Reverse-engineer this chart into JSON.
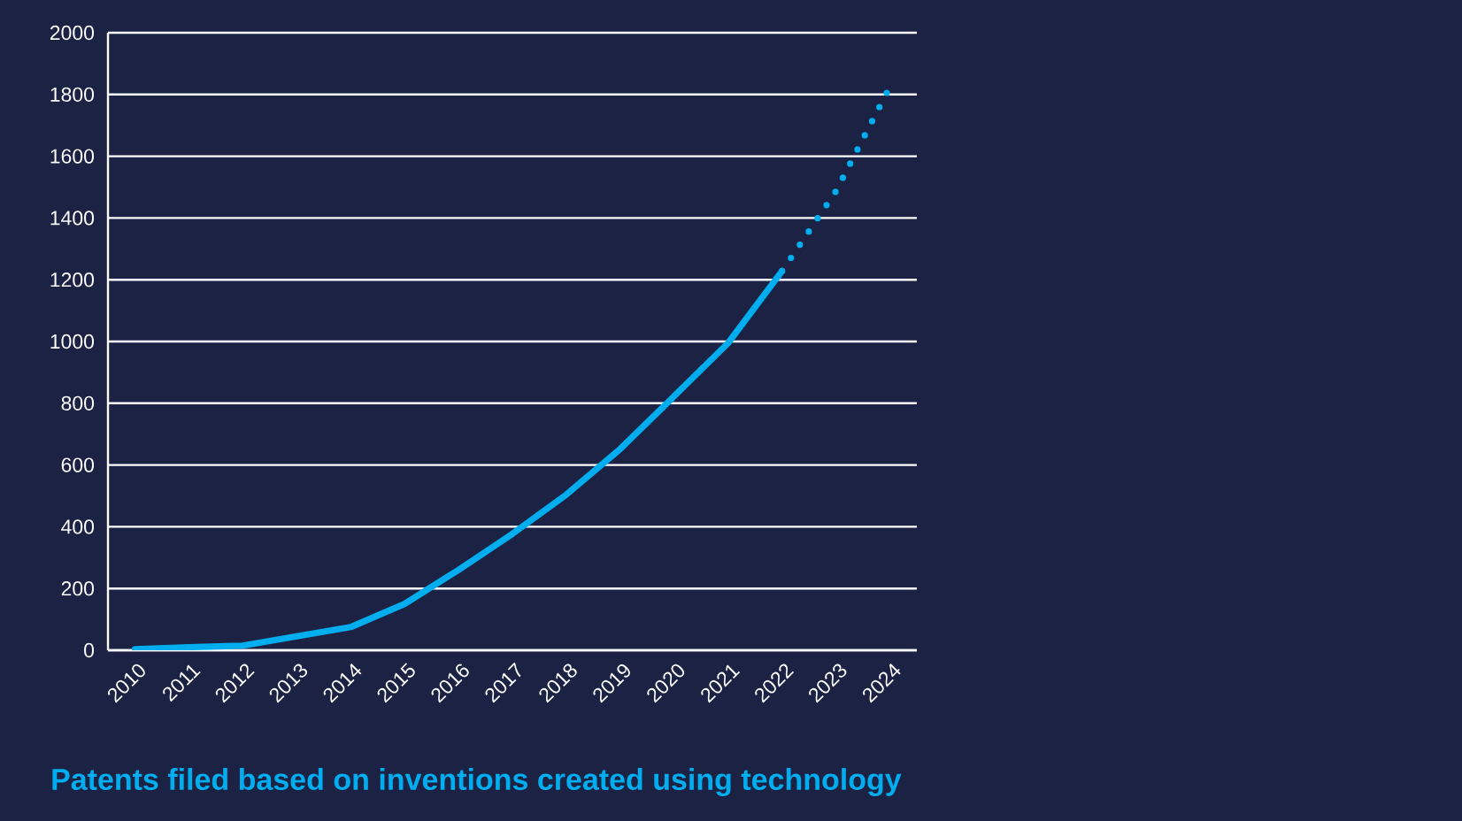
{
  "chart_data": {
    "type": "line",
    "title": "Patents filed based on inventions created using technology",
    "categories": [
      "2010",
      "2011",
      "2012",
      "2013",
      "2014",
      "2015",
      "2016",
      "2017",
      "2018",
      "2019",
      "2020",
      "2021",
      "2022",
      "2023",
      "2024"
    ],
    "series": [
      {
        "color": "#00aeef",
        "line_style": "solid",
        "values": [
          3,
          10,
          15,
          45,
          75,
          150,
          260,
          377,
          504,
          652,
          823,
          995,
          1228,
          null,
          null
        ]
      },
      {
        "color": "#00aeef",
        "line_style": "dotted",
        "values": [
          null,
          null,
          null,
          null,
          null,
          null,
          null,
          null,
          null,
          null,
          null,
          null,
          1228,
          1487,
          1825
        ]
      }
    ],
    "ylim": [
      0,
      2000
    ],
    "yticks": [
      0,
      200,
      400,
      600,
      800,
      1000,
      1200,
      1400,
      1600,
      1800,
      2000
    ],
    "grid": "y"
  }
}
